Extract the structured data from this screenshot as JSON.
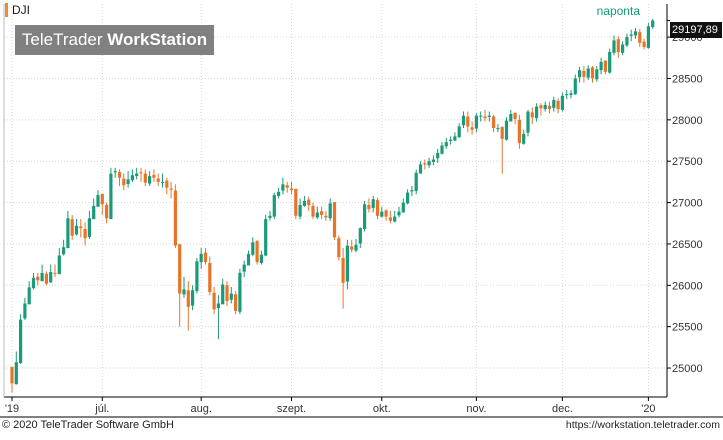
{
  "header": {
    "symbol": "DJI",
    "logo_brand": "TeleTrader",
    "logo_product": "WorkStation",
    "period": "naponta",
    "last_price": "29197,89"
  },
  "footer": {
    "copyright": "© 2020 TeleTrader Software GmbH",
    "url": "https://workstation.teletrader.com"
  },
  "colors": {
    "up": "#1a9a7a",
    "down": "#e8742a",
    "grid": "#d6d6d6",
    "frame": "#000000",
    "badge": "#111111",
    "period_text": "#0f9a7c",
    "symbol_marker": "#f28c28"
  },
  "chart_data": {
    "type": "candlestick",
    "x_axis": {
      "labels": [
        "'19",
        "júl.",
        "aug.",
        "szept.",
        "okt.",
        "nov.",
        "dec.",
        "'20"
      ],
      "label_bars": [
        0,
        21,
        44,
        65,
        86,
        108,
        128,
        148
      ]
    },
    "y_axis": {
      "ticks": [
        25000,
        25500,
        26000,
        26500,
        27000,
        27500,
        28000,
        28500,
        29000
      ],
      "min": 24650,
      "max": 29400,
      "decimal_separator": ","
    },
    "closes": [
      24815,
      25070,
      25585,
      25780,
      25975,
      26090,
      26060,
      26150,
      26020,
      26160,
      26145,
      26360,
      26460,
      26810,
      26600,
      26720,
      26690,
      26570,
      26810,
      26960,
      27090,
      26980,
      26810,
      27350,
      27380,
      27300,
      27210,
      27280,
      27330,
      27350,
      27360,
      27240,
      27320,
      27300,
      27250,
      27250,
      27180,
      27155,
      26480,
      25900,
      25950,
      25740,
      25940,
      26290,
      26380,
      26280,
      25920,
      25710,
      25780,
      26010,
      25810,
      25900,
      25690,
      26150,
      26250,
      26380,
      26520,
      26280,
      26370,
      26800,
      26840,
      27090,
      27130,
      27220,
      27180,
      27150,
      26840,
      26970,
      27020,
      26970,
      26830,
      26880,
      26850,
      26820,
      26990,
      26580,
      26340,
      26030,
      26480,
      26430,
      26490,
      26690,
      26980,
      26920,
      27040,
      26840,
      26890,
      26830,
      26780,
      26830,
      26890,
      27000,
      27120,
      27150,
      27360,
      27460,
      27460,
      27500,
      27520,
      27600,
      27690,
      27730,
      27760,
      27800,
      27920,
      28050,
      27920,
      27880,
      28050,
      28050,
      28020,
      28050,
      27900,
      27900,
      27770,
      27990,
      28070,
      28010,
      27720,
      27830,
      28100,
      28030,
      28160,
      28140,
      28180,
      28130,
      28240,
      28130,
      28290,
      28310,
      28320,
      28500,
      28600,
      28520,
      28620,
      28500,
      28610,
      28700,
      28580,
      28820,
      28960,
      28820,
      28910,
      29000,
      29030,
      29070,
      28930,
      28880,
      29130,
      29200
    ],
    "high_series": [
      25000,
      25200,
      25650,
      25850,
      26050,
      26150,
      26150,
      26250,
      26170,
      26250,
      26250,
      26450,
      26550,
      26900,
      26850,
      26800,
      26800,
      26760,
      26900,
      27050,
      27150,
      27100,
      27000,
      27420,
      27420,
      27400,
      27350,
      27380,
      27400,
      27420,
      27420,
      27400,
      27380,
      27400,
      27350,
      27350,
      27300,
      27250,
      27220,
      26500,
      26100,
      26050,
      26000,
      26330,
      26450,
      26450,
      26350,
      25980,
      25880,
      26080,
      26050,
      25980,
      25930,
      26200,
      26300,
      26420,
      26580,
      26550,
      26420,
      26850,
      26900,
      27120,
      27180,
      27300,
      27250,
      27250,
      27170,
      27050,
      27080,
      27070,
      27000,
      26950,
      26950,
      26900,
      27050,
      27000,
      26600,
      26450,
      26550,
      26550,
      26560,
      26700,
      27020,
      27050,
      27080,
      27060,
      26950,
      26920,
      26900,
      26900,
      26950,
      27050,
      27160,
      27200,
      27400,
      27500,
      27520,
      27540,
      27570,
      27650,
      27730,
      27780,
      27800,
      27850,
      27960,
      28100,
      28100,
      27980,
      28080,
      28100,
      28120,
      28100,
      28060,
      27950,
      27920,
      28030,
      28120,
      28090,
      28060,
      27880,
      28120,
      28150,
      28200,
      28200,
      28220,
      28220,
      28280,
      28260,
      28330,
      28360,
      28360,
      28550,
      28640,
      28650,
      28660,
      28650,
      28650,
      28750,
      28720,
      28860,
      29020,
      29010,
      28950,
      29040,
      29090,
      29110,
      29100,
      28980,
      29170,
      29220
    ],
    "low_series": [
      24700,
      24800,
      25050,
      25580,
      25780,
      25950,
      26000,
      26050,
      26000,
      26030,
      26100,
      26150,
      26360,
      26450,
      26550,
      26600,
      26580,
      26480,
      26560,
      26800,
      26950,
      26850,
      26750,
      26800,
      27300,
      27200,
      27150,
      27180,
      27250,
      27280,
      27250,
      27200,
      27200,
      27250,
      27200,
      27180,
      27100,
      27050,
      26450,
      25500,
      25850,
      25450,
      25700,
      25900,
      26200,
      26250,
      25880,
      25650,
      25350,
      25800,
      25750,
      25780,
      25650,
      25650,
      26100,
      26250,
      26350,
      26250,
      26250,
      26350,
      26780,
      26800,
      27050,
      27100,
      27120,
      27100,
      26800,
      26800,
      26950,
      26900,
      26800,
      26800,
      26800,
      26780,
      26780,
      26550,
      26300,
      25720,
      25950,
      26400,
      26400,
      26450,
      26650,
      26880,
      26880,
      26800,
      26820,
      26780,
      26750,
      26760,
      26820,
      26880,
      26980,
      27080,
      27100,
      27360,
      27400,
      27420,
      27450,
      27480,
      27580,
      27650,
      27700,
      27740,
      27780,
      27900,
      27850,
      27820,
      27850,
      27980,
      27980,
      27980,
      27850,
      27850,
      27350,
      27750,
      27980,
      27950,
      27650,
      27700,
      27800,
      27950,
      27980,
      28050,
      28100,
      28080,
      28100,
      28080,
      28100,
      28250,
      28260,
      28300,
      28450,
      28450,
      28480,
      28450,
      28460,
      28550,
      28550,
      28560,
      28780,
      28750,
      28780,
      28880,
      28950,
      28980,
      28880,
      28850,
      28860,
      29100
    ]
  }
}
